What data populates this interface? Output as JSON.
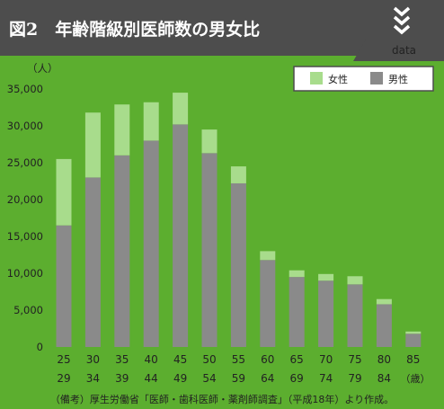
{
  "header": {
    "title": "図2　年齢階級別医師数の男女比",
    "data_label": "data",
    "chevron_icon": "triple-chevron-down-icon"
  },
  "colors": {
    "background": "#5cae2f",
    "header": "#4d4d4d",
    "female": "#a8dc8c",
    "male": "#8a8a8a"
  },
  "chart_data": {
    "type": "bar",
    "stacked": true,
    "ylabel": "（人）",
    "xlabel": "（歳）",
    "ylim": [
      0,
      35000
    ],
    "yticks": [
      0,
      5000,
      10000,
      15000,
      20000,
      25000,
      30000,
      35000
    ],
    "ytick_labels": [
      "0",
      "5,000",
      "10,000",
      "15,000",
      "20,000",
      "25,000",
      "30,000",
      "35,000"
    ],
    "categories": [
      {
        "from": "25",
        "to": "29"
      },
      {
        "from": "30",
        "to": "34"
      },
      {
        "from": "35",
        "to": "39"
      },
      {
        "from": "40",
        "to": "44"
      },
      {
        "from": "45",
        "to": "49"
      },
      {
        "from": "50",
        "to": "54"
      },
      {
        "from": "55",
        "to": "59"
      },
      {
        "from": "60",
        "to": "64"
      },
      {
        "from": "65",
        "to": "69"
      },
      {
        "from": "70",
        "to": "74"
      },
      {
        "from": "75",
        "to": "79"
      },
      {
        "from": "80",
        "to": "84"
      },
      {
        "from": "85",
        "to": ""
      }
    ],
    "series": [
      {
        "name": "男性",
        "color": "#8a8a8a",
        "values": [
          16500,
          23000,
          26000,
          28000,
          30200,
          26300,
          22200,
          11800,
          9500,
          9000,
          8500,
          5800,
          1800
        ]
      },
      {
        "name": "女性",
        "color": "#a8dc8c",
        "values": [
          9000,
          8800,
          6900,
          5200,
          4300,
          3200,
          2300,
          1200,
          900,
          900,
          1100,
          700,
          300
        ]
      }
    ],
    "legend": {
      "position": "top-right",
      "order": [
        "女性",
        "男性"
      ]
    },
    "grid": false
  },
  "footer": {
    "note": "（備考）厚生労働省「医師・歯科医師・薬剤師調査」（平成18年）より作成。"
  }
}
